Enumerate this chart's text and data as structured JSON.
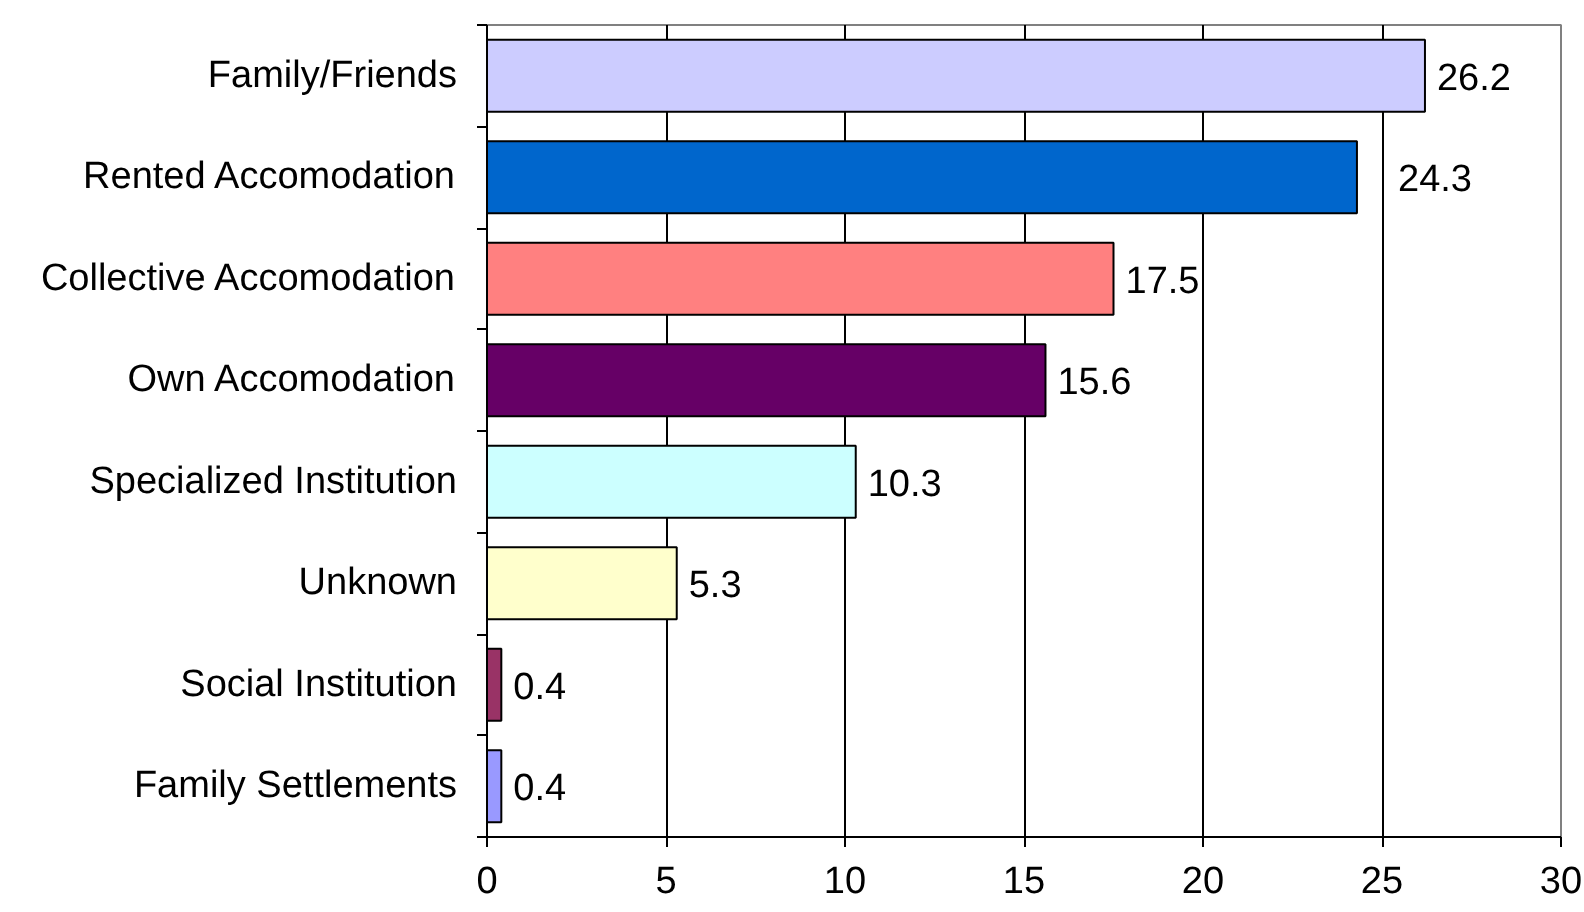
{
  "chart_data": {
    "type": "bar",
    "orientation": "horizontal",
    "categories": [
      "Family/Friends",
      "Rented Accomodation",
      "Collective Accomodation",
      "Own Accomodation",
      "Specialized Institution",
      "Unknown",
      "Social Institution",
      "Family Settlements"
    ],
    "values": [
      26.2,
      24.3,
      17.5,
      15.6,
      10.3,
      5.3,
      0.4,
      0.4
    ],
    "colors": [
      "#ccccff",
      "#0066cc",
      "#ff8080",
      "#660066",
      "#ccffff",
      "#ffffcc",
      "#993366",
      "#9999ff"
    ],
    "xlim": [
      0,
      30
    ],
    "xticks": [
      0,
      5,
      10,
      15,
      20,
      25,
      30
    ],
    "grid": "x",
    "data_labels": true
  }
}
